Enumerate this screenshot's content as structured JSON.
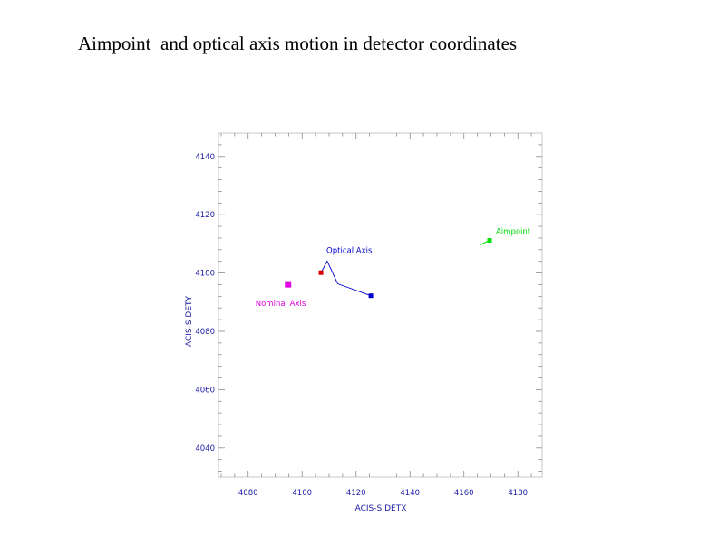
{
  "page": {
    "title": "Aimpoint  and optical axis motion in detector coordinates"
  },
  "chart_data": {
    "type": "scatter",
    "title": "",
    "xlabel": "ACIS-S DETX",
    "ylabel": "ACIS-S DETY",
    "xlim": [
      4069,
      4189
    ],
    "ylim": [
      4030,
      4148
    ],
    "xticks": [
      4080,
      4100,
      4120,
      4140,
      4160,
      4180
    ],
    "yticks": [
      4040,
      4060,
      4080,
      4100,
      4120,
      4140
    ],
    "grid": false,
    "axis_color": "#1a1aa6",
    "series": [
      {
        "name": "Optical Axis",
        "color": "#0000cc",
        "points": [
          [
            4107.0,
            4100.1
          ],
          [
            4109.3,
            4104.1
          ],
          [
            4113.2,
            4096.3
          ],
          [
            4125.5,
            4092.2
          ]
        ],
        "start_color": "#dd0000",
        "end_color": "#0000cc"
      },
      {
        "name": "Aimpoint",
        "color": "#00dd00",
        "points": [
          [
            4165.8,
            4109.6
          ],
          [
            4169.5,
            4111.2
          ]
        ]
      },
      {
        "name": "Nominal Axis",
        "color": "#e000e0",
        "points": [
          [
            4094.8,
            4096.1
          ]
        ]
      }
    ]
  }
}
